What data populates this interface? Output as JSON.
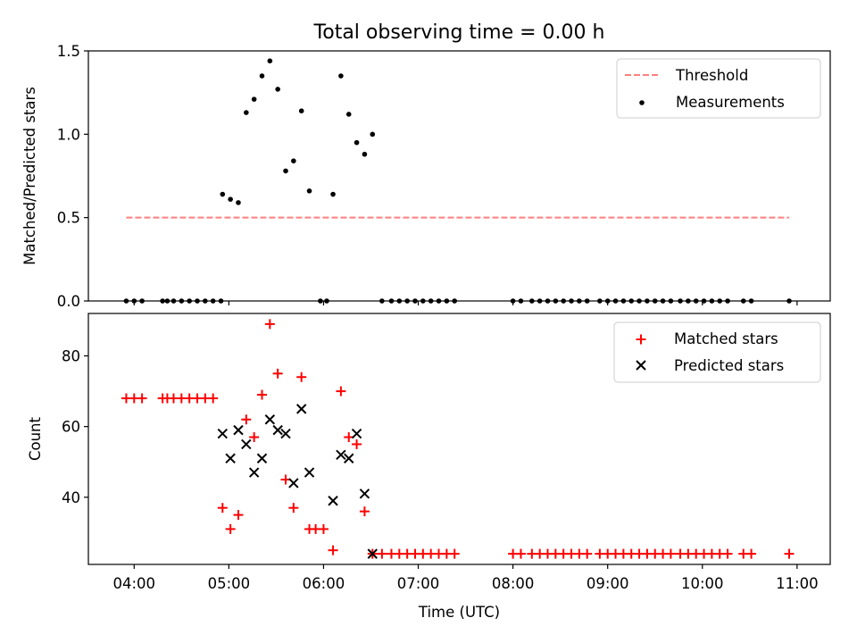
{
  "chart_data": [
    {
      "type": "scatter",
      "title": "Total observing time = 0.00 h",
      "xlabel": "",
      "ylabel": "Matched/Predicted stars",
      "ylim": [
        0,
        1.5
      ],
      "yticks": [
        0.0,
        0.5,
        1.0,
        1.5
      ],
      "ytick_labels": [
        "0.0",
        "0.5",
        "1.0",
        "1.5"
      ],
      "legend_position": "top-right",
      "threshold": {
        "name": "Threshold",
        "y": 0.5,
        "x_range": [
          "03:55",
          "10:55"
        ],
        "color": "#ff7f7f"
      },
      "series": [
        {
          "name": "Measurements",
          "color": "#000000",
          "points": [
            [
              "03:55",
              0
            ],
            [
              "04:00",
              0
            ],
            [
              "04:05",
              0
            ],
            [
              "04:18",
              0
            ],
            [
              "04:21",
              0
            ],
            [
              "04:25",
              0
            ],
            [
              "04:30",
              0
            ],
            [
              "04:35",
              0
            ],
            [
              "04:40",
              0
            ],
            [
              "04:45",
              0
            ],
            [
              "04:50",
              0
            ],
            [
              "04:55",
              0
            ],
            [
              "04:56",
              0.64
            ],
            [
              "05:01",
              0.61
            ],
            [
              "05:06",
              0.59
            ],
            [
              "05:11",
              1.13
            ],
            [
              "05:16",
              1.21
            ],
            [
              "05:21",
              1.35
            ],
            [
              "05:26",
              1.44
            ],
            [
              "05:31",
              1.27
            ],
            [
              "05:36",
              0.78
            ],
            [
              "05:41",
              0.84
            ],
            [
              "05:46",
              1.14
            ],
            [
              "05:51",
              0.66
            ],
            [
              "05:58",
              0
            ],
            [
              "06:02",
              0
            ],
            [
              "06:06",
              0.64
            ],
            [
              "06:11",
              1.35
            ],
            [
              "06:16",
              1.12
            ],
            [
              "06:21",
              0.95
            ],
            [
              "06:26",
              0.88
            ],
            [
              "06:31",
              1.0
            ],
            [
              "06:37",
              0
            ],
            [
              "06:43",
              0
            ],
            [
              "06:48",
              0
            ],
            [
              "06:53",
              0
            ],
            [
              "06:58",
              0
            ],
            [
              "07:03",
              0
            ],
            [
              "07:08",
              0
            ],
            [
              "07:13",
              0
            ],
            [
              "07:18",
              0
            ],
            [
              "07:23",
              0
            ],
            [
              "08:00",
              0
            ],
            [
              "08:05",
              0
            ],
            [
              "08:12",
              0
            ],
            [
              "08:17",
              0
            ],
            [
              "08:22",
              0
            ],
            [
              "08:27",
              0
            ],
            [
              "08:32",
              0
            ],
            [
              "08:37",
              0
            ],
            [
              "08:42",
              0
            ],
            [
              "08:47",
              0
            ],
            [
              "08:55",
              0
            ],
            [
              "09:00",
              0
            ],
            [
              "09:05",
              0
            ],
            [
              "09:10",
              0
            ],
            [
              "09:15",
              0
            ],
            [
              "09:20",
              0
            ],
            [
              "09:25",
              0
            ],
            [
              "09:30",
              0
            ],
            [
              "09:35",
              0
            ],
            [
              "09:40",
              0
            ],
            [
              "09:46",
              0
            ],
            [
              "09:51",
              0
            ],
            [
              "09:56",
              0
            ],
            [
              "10:01",
              0
            ],
            [
              "10:06",
              0
            ],
            [
              "10:11",
              0
            ],
            [
              "10:16",
              0
            ],
            [
              "10:26",
              0
            ],
            [
              "10:31",
              0
            ],
            [
              "10:55",
              0
            ]
          ]
        }
      ]
    },
    {
      "type": "scatter",
      "title": "",
      "xlabel": "Time (UTC)",
      "ylabel": "Count",
      "ylim": [
        21,
        92
      ],
      "yticks": [
        40,
        60,
        80
      ],
      "ytick_labels": [
        "40",
        "60",
        "80"
      ],
      "xlim": [
        "03:31",
        "11:21"
      ],
      "xticks": [
        "04:00",
        "05:00",
        "06:00",
        "07:00",
        "08:00",
        "09:00",
        "10:00",
        "11:00"
      ],
      "legend_position": "top-right",
      "series": [
        {
          "name": "Matched stars",
          "marker": "+",
          "color": "#ff0000",
          "points": [
            [
              "03:55",
              68
            ],
            [
              "04:00",
              68
            ],
            [
              "04:05",
              68
            ],
            [
              "04:18",
              68
            ],
            [
              "04:21",
              68
            ],
            [
              "04:25",
              68
            ],
            [
              "04:30",
              68
            ],
            [
              "04:35",
              68
            ],
            [
              "04:40",
              68
            ],
            [
              "04:45",
              68
            ],
            [
              "04:50",
              68
            ],
            [
              "04:56",
              37
            ],
            [
              "05:01",
              31
            ],
            [
              "05:06",
              35
            ],
            [
              "05:11",
              62
            ],
            [
              "05:16",
              57
            ],
            [
              "05:21",
              69
            ],
            [
              "05:26",
              89
            ],
            [
              "05:31",
              75
            ],
            [
              "05:36",
              45
            ],
            [
              "05:41",
              37
            ],
            [
              "05:46",
              74
            ],
            [
              "05:51",
              31
            ],
            [
              "05:55",
              31
            ],
            [
              "06:00",
              31
            ],
            [
              "06:06",
              25
            ],
            [
              "06:11",
              70
            ],
            [
              "06:16",
              57
            ],
            [
              "06:21",
              55
            ],
            [
              "06:26",
              36
            ],
            [
              "06:31",
              24
            ],
            [
              "06:37",
              24
            ],
            [
              "06:43",
              24
            ],
            [
              "06:48",
              24
            ],
            [
              "06:53",
              24
            ],
            [
              "06:58",
              24
            ],
            [
              "07:03",
              24
            ],
            [
              "07:08",
              24
            ],
            [
              "07:13",
              24
            ],
            [
              "07:18",
              24
            ],
            [
              "07:23",
              24
            ],
            [
              "08:00",
              24
            ],
            [
              "08:05",
              24
            ],
            [
              "08:12",
              24
            ],
            [
              "08:17",
              24
            ],
            [
              "08:22",
              24
            ],
            [
              "08:27",
              24
            ],
            [
              "08:32",
              24
            ],
            [
              "08:37",
              24
            ],
            [
              "08:42",
              24
            ],
            [
              "08:47",
              24
            ],
            [
              "08:55",
              24
            ],
            [
              "09:00",
              24
            ],
            [
              "09:05",
              24
            ],
            [
              "09:10",
              24
            ],
            [
              "09:15",
              24
            ],
            [
              "09:20",
              24
            ],
            [
              "09:25",
              24
            ],
            [
              "09:30",
              24
            ],
            [
              "09:35",
              24
            ],
            [
              "09:40",
              24
            ],
            [
              "09:46",
              24
            ],
            [
              "09:51",
              24
            ],
            [
              "09:56",
              24
            ],
            [
              "10:01",
              24
            ],
            [
              "10:06",
              24
            ],
            [
              "10:11",
              24
            ],
            [
              "10:16",
              24
            ],
            [
              "10:26",
              24
            ],
            [
              "10:31",
              24
            ],
            [
              "10:55",
              24
            ]
          ]
        },
        {
          "name": "Predicted stars",
          "marker": "x",
          "color": "#000000",
          "points": [
            [
              "04:56",
              58
            ],
            [
              "05:01",
              51
            ],
            [
              "05:06",
              59
            ],
            [
              "05:11",
              55
            ],
            [
              "05:16",
              47
            ],
            [
              "05:21",
              51
            ],
            [
              "05:26",
              62
            ],
            [
              "05:31",
              59
            ],
            [
              "05:36",
              58
            ],
            [
              "05:41",
              44
            ],
            [
              "05:46",
              65
            ],
            [
              "05:51",
              47
            ],
            [
              "06:06",
              39
            ],
            [
              "06:11",
              52
            ],
            [
              "06:16",
              51
            ],
            [
              "06:21",
              58
            ],
            [
              "06:26",
              41
            ],
            [
              "06:31",
              24
            ]
          ]
        }
      ]
    }
  ]
}
